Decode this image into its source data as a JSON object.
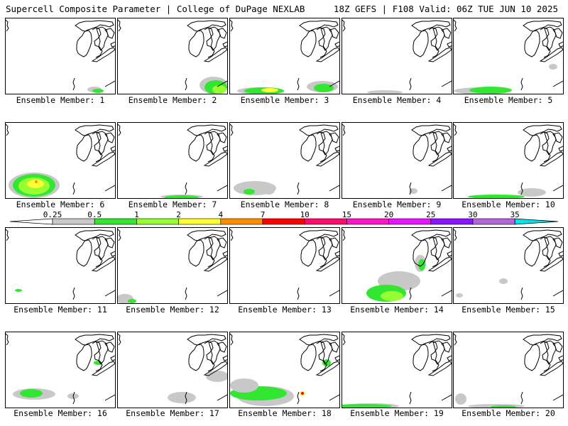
{
  "header": {
    "left": "Supercell Composite Parameter | College of DuPage NEXLAB",
    "right": "18Z GEFS | F108 Valid: 06Z TUE JUN 10 2025"
  },
  "member_prefix": "Ensemble Member: ",
  "members": [
    1,
    2,
    3,
    4,
    5,
    6,
    7,
    8,
    9,
    10,
    11,
    12,
    13,
    14,
    15,
    16,
    17,
    18,
    19,
    20
  ],
  "legend": {
    "ticks": [
      "0.25",
      "0.5",
      "1",
      "2",
      "4",
      "7",
      "10",
      "15",
      "20",
      "25",
      "30",
      "35"
    ],
    "colors": [
      "#c8c8c8",
      "#32e632",
      "#96ff32",
      "#ffff32",
      "#ff8c00",
      "#ff0000",
      "#ff0a6e",
      "#ff14c8",
      "#e614ff",
      "#8c14ff",
      "#b464dc",
      "#00e6e6"
    ]
  }
}
